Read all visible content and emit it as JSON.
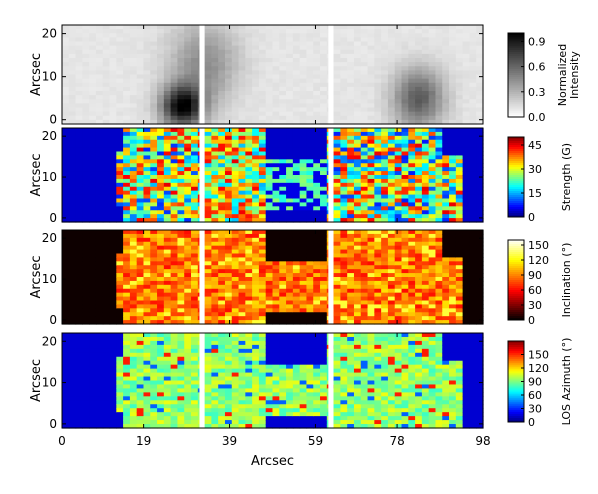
{
  "chart_data": [
    {
      "type": "heatmap",
      "panel": "intensity",
      "colormap": "gray_r",
      "ylabel": "Arcsec",
      "yticks": [
        0,
        10,
        20
      ],
      "colorbar": {
        "label_lines": [
          "Normalized",
          "Intensity"
        ],
        "ticks": [
          "0.0",
          "0.3",
          "0.6",
          "0.9"
        ],
        "range": [
          0,
          1.0
        ]
      }
    },
    {
      "type": "heatmap",
      "panel": "strength",
      "colormap": "jet",
      "ylabel": "Arcsec",
      "yticks": [
        0,
        10,
        20
      ],
      "colorbar": {
        "label": "Strength (G)",
        "ticks": [
          "0",
          "15",
          "30",
          "45"
        ],
        "range": [
          0,
          50
        ]
      }
    },
    {
      "type": "heatmap",
      "panel": "inclination",
      "colormap": "hot",
      "ylabel": "Arcsec",
      "yticks": [
        0,
        10,
        20
      ],
      "colorbar": {
        "label": "Inclination (°)",
        "ticks": [
          "0",
          "30",
          "60",
          "90",
          "120",
          "150"
        ],
        "range": [
          0,
          160
        ]
      }
    },
    {
      "type": "heatmap",
      "panel": "azimuth",
      "colormap": "jet",
      "ylabel": "Arcsec",
      "yticks": [
        0,
        10,
        20
      ],
      "colorbar": {
        "label": "LOS Azimuth (°)",
        "ticks": [
          "0",
          "30",
          "60",
          "90",
          "120",
          "150"
        ],
        "range": [
          0,
          180
        ]
      }
    }
  ],
  "x_axis": {
    "label": "Arcsec",
    "ticks": [
      "0",
      "19",
      "39",
      "59",
      "78",
      "98"
    ],
    "tick_values": [
      0,
      19,
      39,
      59,
      78,
      98
    ],
    "range": [
      0,
      98
    ]
  },
  "y_range": [
    -1,
    22
  ]
}
